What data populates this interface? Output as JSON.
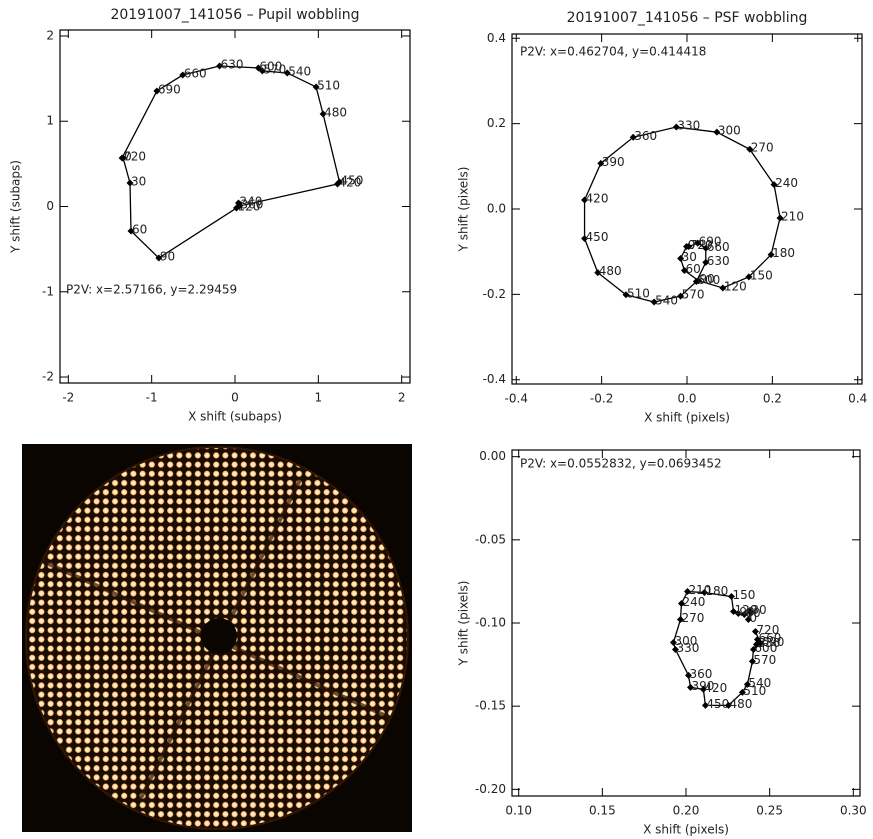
{
  "chart_data": [
    {
      "type": "line",
      "title": "20191007_141056 – Pupil wobbling",
      "xlabel": "X shift (subaps)",
      "ylabel": "Y shift (subaps)",
      "annotation": "P2V: x=2.57166, y=2.29459",
      "x": [
        -1.343,
        -1.26,
        -1.248,
        -0.914,
        0.018,
        0.042,
        0.054,
        1.23,
        1.254,
        1.057,
        0.973,
        0.627,
        0.328,
        0.281,
        -0.185,
        -0.627,
        -0.937,
        -1.355
      ],
      "series": [
        {
          "color": "#000000",
          "values": [
            0.569,
            0.276,
            -0.287,
            -0.604,
            -0.018,
            0.041,
            0.006,
            0.264,
            0.287,
            1.085,
            1.402,
            1.566,
            1.59,
            1.625,
            1.648,
            1.542,
            1.355,
            0.569
          ]
        }
      ],
      "point_labels": [
        "0",
        "30",
        "60",
        "90",
        "120",
        "240",
        "360",
        "420",
        "450",
        "480",
        "510",
        "540",
        "570",
        "600",
        "630",
        "660",
        "690",
        "720"
      ],
      "xlim": [
        -2.1,
        2.1
      ],
      "ylim": [
        -2.07,
        2.07
      ],
      "xticks": [
        -2,
        -1,
        0,
        1,
        2
      ],
      "yticks": [
        -2,
        -1,
        0,
        1,
        2
      ]
    },
    {
      "type": "line",
      "title": "20191007_141056 – PSF wobbling",
      "xlabel": "X shift (pixels)",
      "ylabel": "Y shift (pixels)",
      "annotation": "P2V: x=0.462704, y=0.414418",
      "x": [
        -0.001,
        -0.015,
        -0.006,
        0.027,
        0.084,
        0.145,
        0.197,
        0.218,
        0.204,
        0.147,
        0.07,
        -0.025,
        -0.126,
        -0.202,
        -0.24,
        -0.24,
        -0.209,
        -0.143,
        -0.077,
        -0.015,
        0.022,
        0.044,
        0.044,
        0.025,
        0.004
      ],
      "series": [
        {
          "color": "#000000",
          "values": [
            -0.088,
            -0.116,
            -0.144,
            -0.168,
            -0.185,
            -0.159,
            -0.107,
            -0.021,
            0.057,
            0.14,
            0.18,
            0.192,
            0.168,
            0.107,
            0.021,
            -0.069,
            -0.149,
            -0.201,
            -0.218,
            -0.204,
            -0.17,
            -0.125,
            -0.092,
            -0.08,
            -0.088
          ]
        }
      ],
      "point_labels": [
        "0",
        "30",
        "60",
        "90",
        "120",
        "150",
        "180",
        "210",
        "240",
        "270",
        "300",
        "330",
        "360",
        "390",
        "420",
        "450",
        "480",
        "510",
        "540",
        "570",
        "600",
        "630",
        "660",
        "690",
        "720"
      ],
      "xlim": [
        -0.41,
        0.41
      ],
      "ylim": [
        -0.41,
        0.41
      ],
      "xticks": [
        -0.4,
        -0.2,
        {
          "value": 0,
          "label": "0.0"
        },
        0.2,
        0.4
      ],
      "yticks": [
        -0.4,
        -0.2,
        {
          "value": 0,
          "label": "0.0"
        },
        0.2,
        0.4
      ]
    },
    {
      "type": "line",
      "xlabel": "X shift (pixels)",
      "ylabel": "Y shift (pixels)",
      "annotation": "P2V: x=0.0552832, y=0.0693452",
      "x": [
        0.2373,
        0.2385,
        0.2349,
        0.2313,
        0.2284,
        0.2272,
        0.211,
        0.2009,
        0.1973,
        0.1967,
        0.1925,
        0.1937,
        0.2015,
        0.2027,
        0.2104,
        0.2116,
        0.2254,
        0.2337,
        0.2367,
        0.2397,
        0.2403,
        0.2421,
        0.2427,
        0.2445,
        0.2415
      ],
      "series": [
        {
          "color": "#000000",
          "values": [
            -0.0979,
            -0.0931,
            -0.0949,
            -0.0943,
            -0.0931,
            -0.0841,
            -0.0817,
            -0.0811,
            -0.0883,
            -0.0979,
            -0.1117,
            -0.1159,
            -0.1315,
            -0.1387,
            -0.1399,
            -0.1495,
            -0.1495,
            -0.1417,
            -0.1369,
            -0.1231,
            -0.1159,
            -0.1129,
            -0.1099,
            -0.1123,
            -0.1051
          ]
        }
      ],
      "point_labels": [
        "0",
        "30",
        "60",
        "90",
        "120",
        "150",
        "180",
        "210",
        "240",
        "270",
        "300",
        "330",
        "360",
        "390",
        "420",
        "450",
        "480",
        "510",
        "540",
        "570",
        "600",
        "630",
        "660",
        "690",
        "720"
      ],
      "xlim": [
        0.096,
        0.304
      ],
      "ylim": [
        -0.204,
        0.004
      ],
      "xticks": [
        {
          "value": 0.1,
          "label": "0.10"
        },
        0.15,
        {
          "value": 0.2,
          "label": "0.20"
        },
        0.25,
        {
          "value": 0.3,
          "label": "0.30"
        }
      ],
      "yticks": [
        {
          "value": 0,
          "label": "0.00"
        },
        -0.05,
        {
          "value": -0.1,
          "label": "-0.10"
        },
        -0.15,
        {
          "value": -0.2,
          "label": "-0.20"
        }
      ]
    }
  ]
}
